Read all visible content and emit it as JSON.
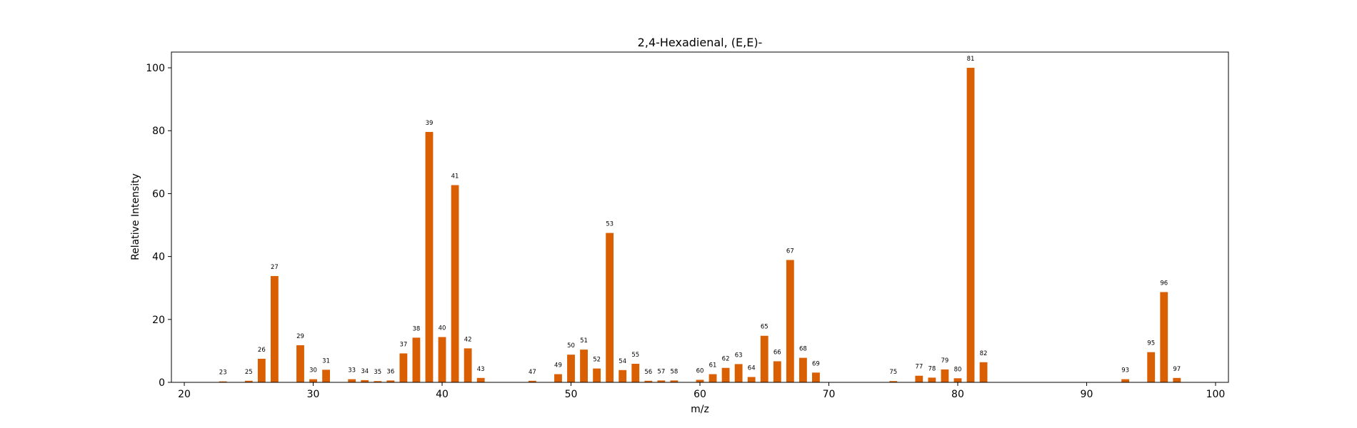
{
  "chart_data": {
    "type": "bar",
    "title": "2,4-Hexadienal, (E,E)-",
    "xlabel": "m/z",
    "ylabel": "Relative Intensity",
    "xlim": [
      19,
      101
    ],
    "ylim": [
      0,
      105
    ],
    "xticks": [
      20,
      30,
      40,
      50,
      60,
      70,
      80,
      90,
      100
    ],
    "yticks": [
      0,
      20,
      40,
      60,
      80,
      100
    ],
    "bar_color": "#d95f02",
    "bar_width": 0.6,
    "grid": false,
    "x": [
      23,
      25,
      26,
      27,
      29,
      30,
      31,
      33,
      34,
      35,
      36,
      37,
      38,
      39,
      40,
      41,
      42,
      43,
      47,
      49,
      50,
      51,
      52,
      53,
      54,
      55,
      56,
      57,
      58,
      60,
      61,
      62,
      63,
      64,
      65,
      66,
      67,
      68,
      69,
      75,
      77,
      78,
      79,
      80,
      81,
      82,
      93,
      95,
      96,
      97
    ],
    "values": [
      0.3,
      0.5,
      7.5,
      33.8,
      11.8,
      1.0,
      4.0,
      1.0,
      0.7,
      0.4,
      0.6,
      9.2,
      14.2,
      79.6,
      14.4,
      62.7,
      10.8,
      1.4,
      0.5,
      2.6,
      8.8,
      10.4,
      4.4,
      47.5,
      3.9,
      5.9,
      0.5,
      0.6,
      0.6,
      0.8,
      2.6,
      4.6,
      5.8,
      1.7,
      14.8,
      6.7,
      38.9,
      7.8,
      3.1,
      0.4,
      2.1,
      1.5,
      4.1,
      1.3,
      100.0,
      6.4,
      1.0,
      9.6,
      28.7,
      1.4
    ],
    "labels": [
      "23",
      "25",
      "26",
      "27",
      "29",
      "30",
      "31",
      "33",
      "34",
      "35",
      "36",
      "37",
      "38",
      "39",
      "40",
      "41",
      "42",
      "43",
      "47",
      "49",
      "50",
      "51",
      "52",
      "53",
      "54",
      "55",
      "56",
      "57",
      "58",
      "60",
      "61",
      "62",
      "63",
      "64",
      "65",
      "66",
      "67",
      "68",
      "69",
      "75",
      "77",
      "78",
      "79",
      "80",
      "81",
      "82",
      "93",
      "95",
      "96",
      "97"
    ]
  }
}
